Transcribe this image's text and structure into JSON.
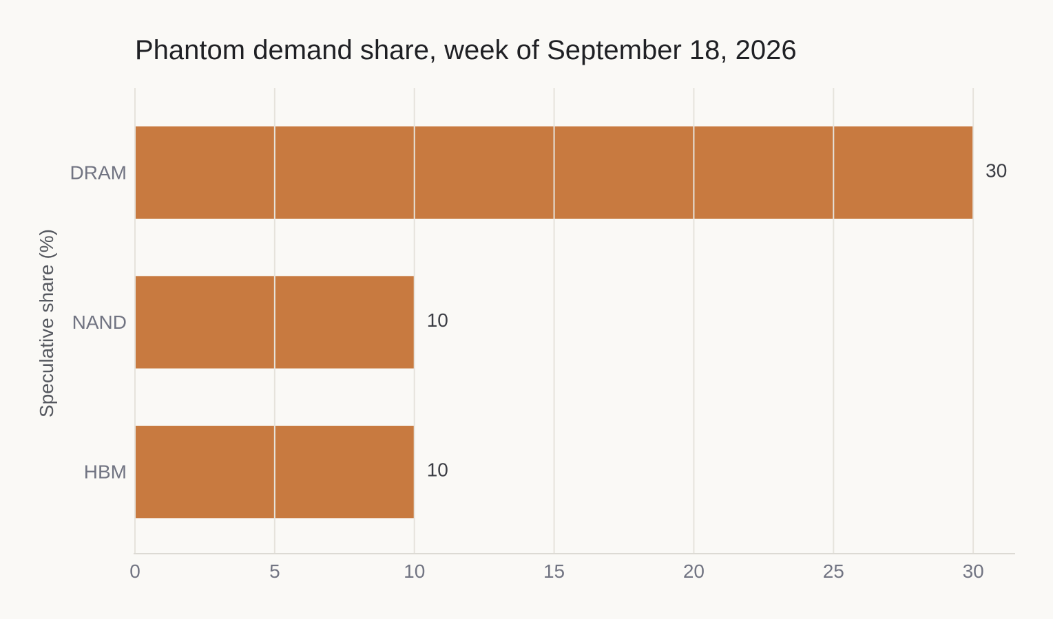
{
  "chart_data": {
    "type": "bar",
    "orientation": "horizontal",
    "title": "Phantom demand share, week of September 18, 2026",
    "xlabel": "",
    "ylabel": "Speculative share (%)",
    "categories": [
      "DRAM",
      "NAND",
      "HBM"
    ],
    "values": [
      30,
      10,
      10
    ],
    "value_labels": [
      "30",
      "10",
      "10"
    ],
    "xlim": [
      0,
      31.5
    ],
    "x_ticks": [
      0,
      5,
      10,
      15,
      20,
      25,
      30
    ],
    "x_tick_labels": [
      "0",
      "5",
      "10",
      "15",
      "20",
      "25",
      "30"
    ],
    "grid": "vertical",
    "legend": "none",
    "colors": {
      "bar": "#c87a40",
      "background": "#faf9f6",
      "grid": "#e6e3dc",
      "axis": "#dcdad4"
    }
  }
}
